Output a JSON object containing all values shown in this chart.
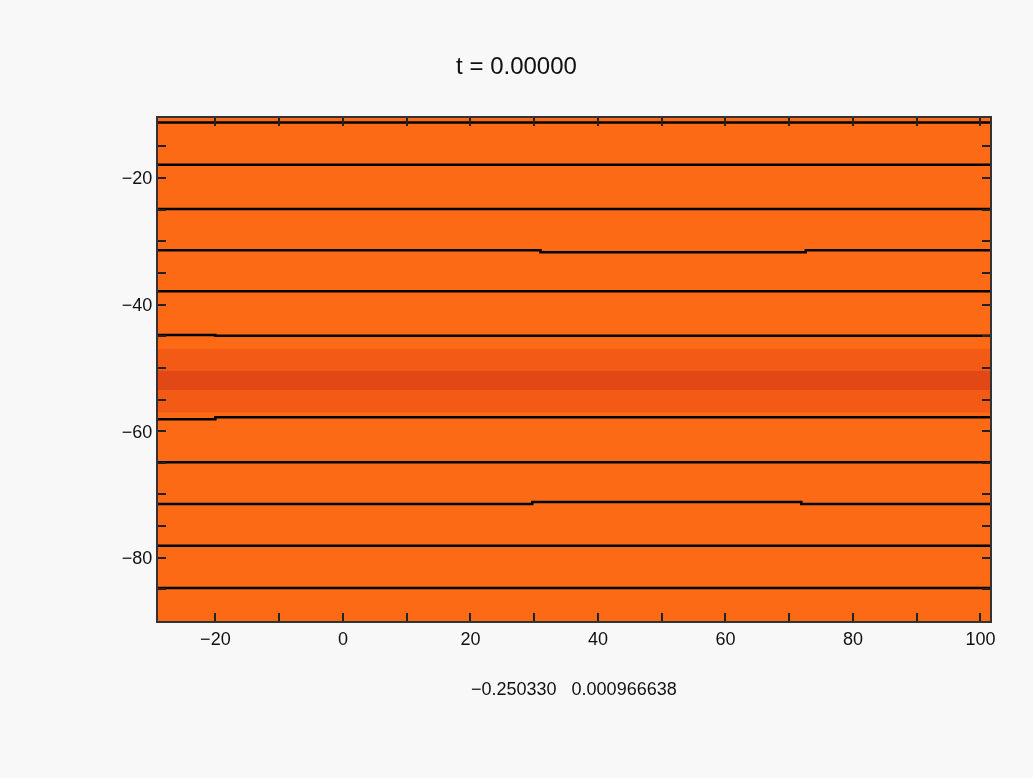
{
  "chart_data": {
    "type": "line",
    "title": "t = 0.00000",
    "xlim": [
      -29,
      101.5
    ],
    "ylim": [
      -90,
      -10.5
    ],
    "xticks": [
      {
        "value": -20,
        "label": "−20"
      },
      {
        "value": -10,
        "label": null
      },
      0,
      {
        "value": 10,
        "label": null
      },
      20,
      {
        "value": 30,
        "label": null
      },
      40,
      {
        "value": 50,
        "label": null
      },
      60,
      {
        "value": 70,
        "label": null
      },
      80,
      {
        "value": 90,
        "label": null
      },
      100
    ],
    "yticks": [
      {
        "value": -85,
        "label": null
      },
      {
        "value": -80,
        "label": "−80"
      },
      {
        "value": -75,
        "label": null
      },
      {
        "value": -70,
        "label": null
      },
      {
        "value": -65,
        "label": null
      },
      {
        "value": -60,
        "label": "−60"
      },
      {
        "value": -55,
        "label": null
      },
      {
        "value": -50,
        "label": null
      },
      {
        "value": -45,
        "label": null
      },
      {
        "value": -40,
        "label": "−40"
      },
      {
        "value": -35,
        "label": null
      },
      {
        "value": -30,
        "label": null
      },
      {
        "value": -25,
        "label": null
      },
      {
        "value": -20,
        "label": "−20"
      },
      {
        "value": -15,
        "label": null
      }
    ],
    "grid": false,
    "marker": "none",
    "line_style": "solid",
    "bands": [
      {
        "axis": "y",
        "from": -90,
        "to": -10.5,
        "color": "#fc6a16"
      },
      {
        "axis": "y",
        "from": -47,
        "to": -57,
        "color": "#f25a16"
      },
      {
        "axis": "y",
        "from": -50.5,
        "to": -53.5,
        "color": "#e24716"
      }
    ],
    "series": [
      {
        "color": "#000000",
        "x": [
          -29,
          101.5
        ],
        "values": [
          -11.2,
          -11.2
        ]
      },
      {
        "color": "#000000",
        "x": [
          -29,
          101.5
        ],
        "values": [
          -17.9,
          -17.9
        ]
      },
      {
        "color": "#000000",
        "x": [
          -29,
          101.5
        ],
        "values": [
          -24.9,
          -24.9
        ]
      },
      {
        "color": "#000000",
        "x": [
          -29,
          31,
          31,
          72.6,
          72.6,
          101.5
        ],
        "values": [
          -31.4,
          -31.4,
          -31.7,
          -31.7,
          -31.4,
          -31.4
        ]
      },
      {
        "color": "#000000",
        "x": [
          -29,
          101.5
        ],
        "values": [
          -37.9,
          -37.9
        ]
      },
      {
        "color": "#000000",
        "x": [
          -29,
          -20,
          -20,
          101.5
        ],
        "values": [
          -44.8,
          -44.8,
          -44.9,
          -44.9
        ]
      },
      {
        "color": "#000000",
        "x": [
          -29,
          -20,
          -20,
          101.5
        ],
        "values": [
          -58.1,
          -58.1,
          -57.8,
          -57.8
        ]
      },
      {
        "color": "#000000",
        "x": [
          -29,
          101.5
        ],
        "values": [
          -64.9,
          -64.9
        ]
      },
      {
        "color": "#000000",
        "x": [
          -29,
          29.7,
          29.7,
          71.9,
          71.9,
          101.5
        ],
        "values": [
          -71.5,
          -71.5,
          -71.2,
          -71.2,
          -71.5,
          -71.5
        ]
      },
      {
        "color": "#000000",
        "x": [
          -29,
          101.5
        ],
        "values": [
          -78.1,
          -78.1
        ]
      },
      {
        "color": "#000000",
        "x": [
          -29,
          101.5
        ],
        "values": [
          -84.8,
          -84.8
        ]
      }
    ],
    "annotations": [
      "−0.250330   0.000966638"
    ]
  }
}
